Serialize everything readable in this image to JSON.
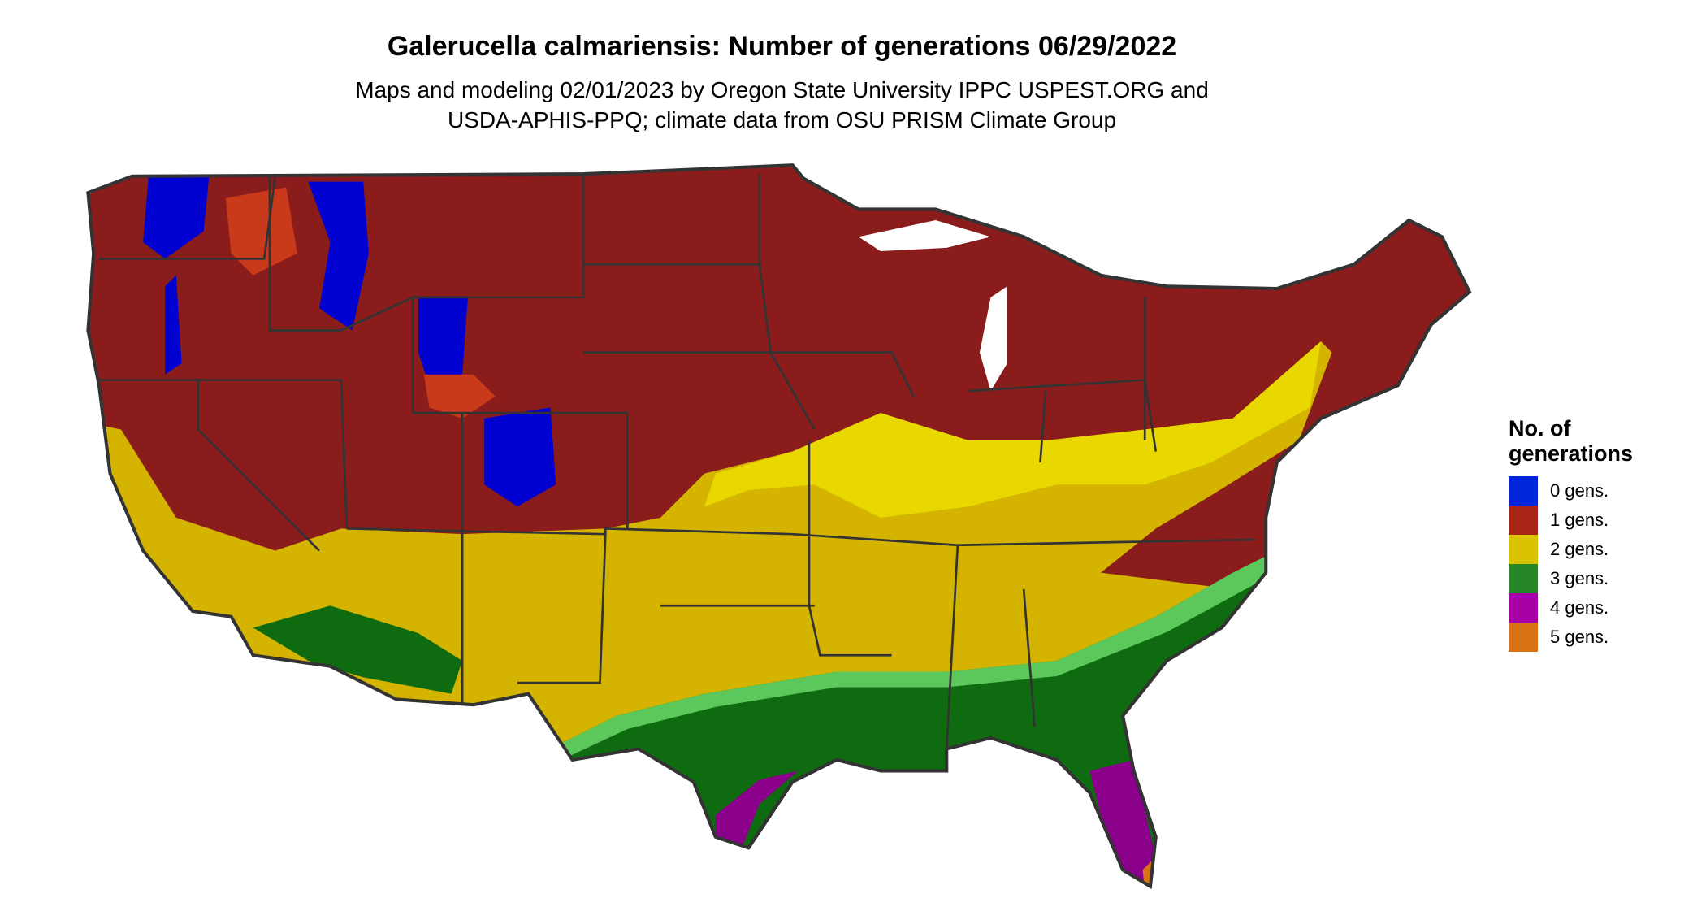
{
  "title": "Galerucella calmariensis: Number of generations 06/29/2022",
  "subtitle_lines": [
    "Maps and modeling 02/01/2023 by Oregon State University IPPC USPEST.ORG and",
    "USDA-APHIS-PPQ; climate data from OSU PRISM Climate Group"
  ],
  "chart_data": {
    "type": "map",
    "region": "Contiguous United States",
    "variable": "Number of generations",
    "date": "06/29/2022",
    "legend": {
      "title": "No. of generations",
      "title_lines": [
        "No. of",
        "generations"
      ],
      "placement": "right",
      "entries": [
        {
          "label": "0 gens.",
          "value": 0,
          "color": "#0026d9"
        },
        {
          "label": "1 gens.",
          "value": 1,
          "color": "#a82414"
        },
        {
          "label": "2 gens.",
          "value": 2,
          "color": "#d9c200"
        },
        {
          "label": "3 gens.",
          "value": 3,
          "color": "#268726"
        },
        {
          "label": "4 gens.",
          "value": 4,
          "color": "#a600a6"
        },
        {
          "label": "5 gens.",
          "value": 5,
          "color": "#d97414"
        }
      ]
    }
  }
}
